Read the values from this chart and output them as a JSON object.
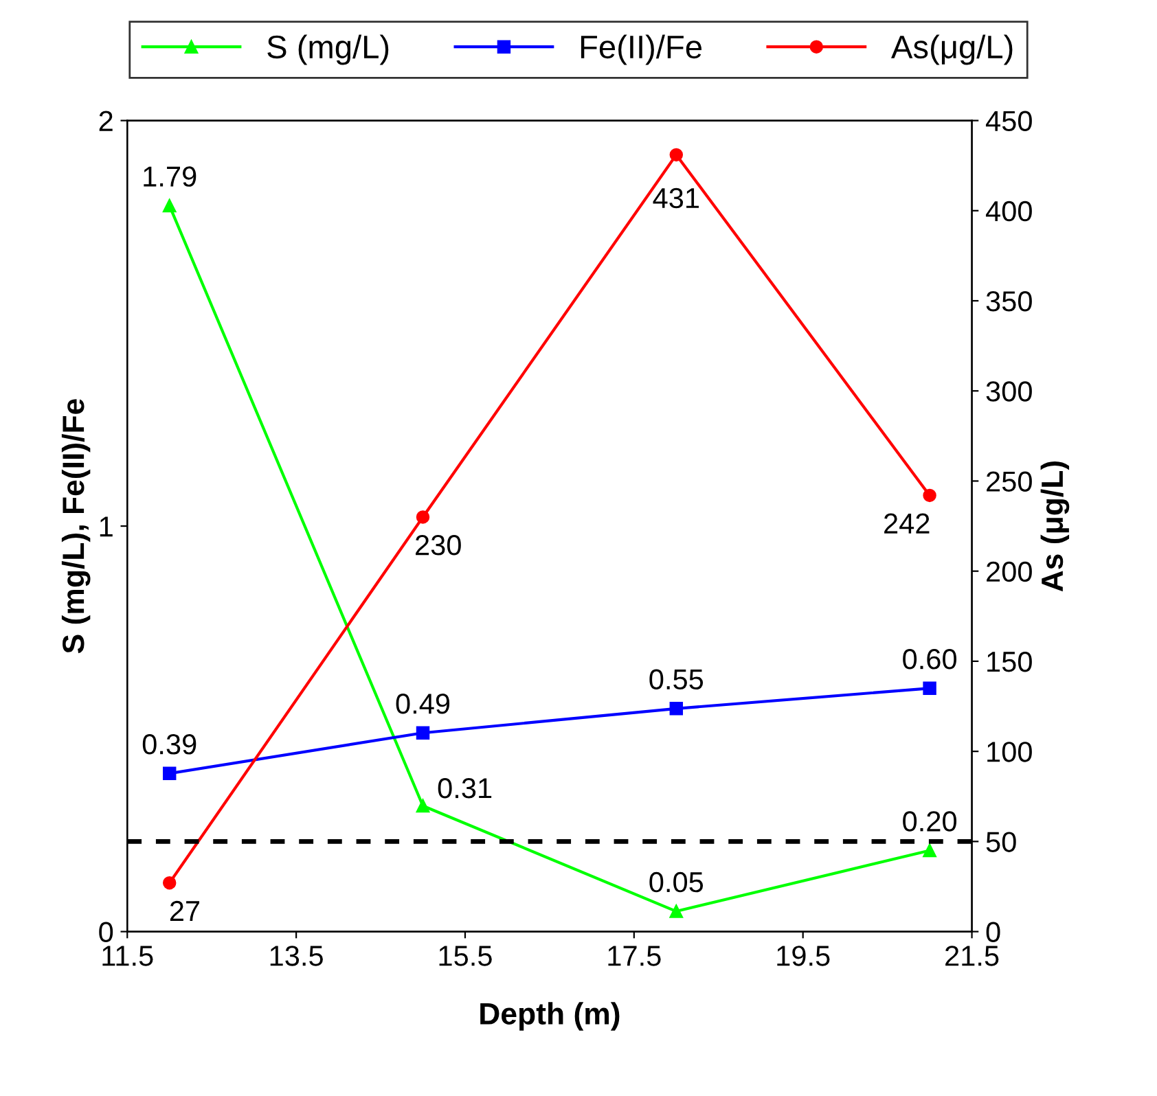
{
  "chart_data": {
    "type": "line",
    "xlabel": "Depth (m)",
    "ylabel": "S (mg/L), Fe(II)/Fe",
    "y2label": "As (μg/L)",
    "x": [
      12,
      15,
      18,
      21
    ],
    "series": [
      {
        "name": "S (mg/L)",
        "color": "#00ff00",
        "marker": "triangle",
        "values": [
          1.79,
          0.31,
          0.05,
          0.2
        ],
        "value_labels": [
          "1.79",
          "0.31",
          "0.05",
          "0.20"
        ]
      },
      {
        "name": "Fe(II)/Fe",
        "color": "#0000ff",
        "marker": "square",
        "values": [
          0.39,
          0.49,
          0.55,
          0.6
        ],
        "value_labels": [
          "0.39",
          "0.49",
          "0.55",
          "0.60"
        ]
      },
      {
        "name": "As(μg/L)",
        "color": "#ff0000",
        "marker": "circle",
        "axis": "y2",
        "values": [
          27,
          230,
          431,
          242
        ],
        "value_labels": [
          "27",
          "230",
          "431",
          "242"
        ]
      }
    ],
    "xlim": [
      11.5,
      21.5
    ],
    "xticks": [
      11.5,
      13.5,
      15.5,
      17.5,
      19.5,
      21.5
    ],
    "ylim": [
      0,
      2
    ],
    "yticks": [
      0,
      1,
      2
    ],
    "y2lim": [
      0,
      450
    ],
    "y2ticks": [
      0,
      50,
      100,
      150,
      200,
      250,
      300,
      350,
      400,
      450
    ],
    "ref_lines": [
      {
        "axis": "y2",
        "value": 50,
        "color": "#000000",
        "line_style": "dashed"
      }
    ],
    "legend": "top",
    "grid": false,
    "line_style": "solid"
  }
}
